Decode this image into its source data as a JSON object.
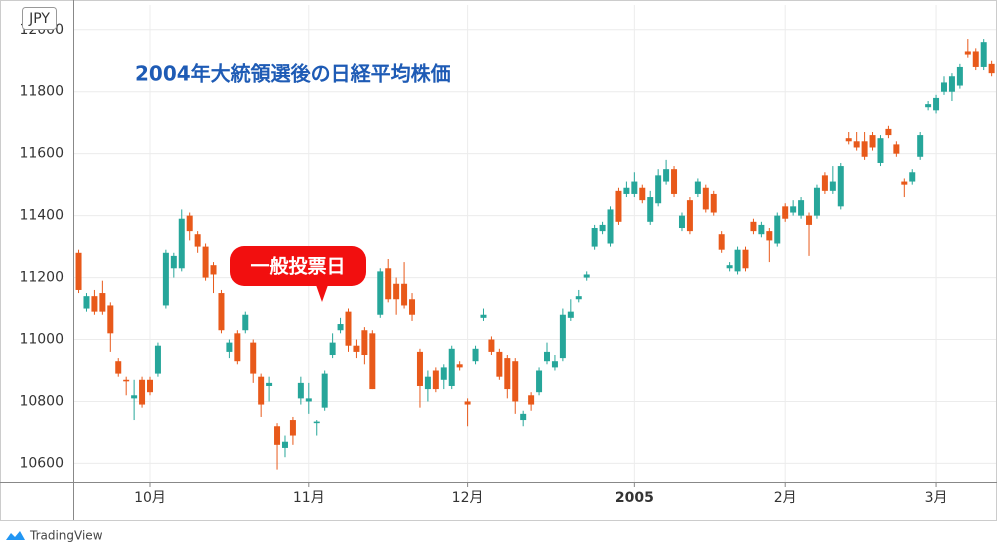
{
  "chart_data": {
    "type": "candlestick",
    "title": "2004年大統領選後の日経平均株価",
    "annotation": "一般投票日",
    "currency": "JPY",
    "source": "TradingView",
    "categories": [
      null,
      null,
      null,
      null,
      null,
      null,
      null,
      null,
      null,
      "10月",
      null,
      null,
      null,
      null,
      null,
      null,
      null,
      null,
      null,
      null,
      null,
      null,
      null,
      null,
      null,
      null,
      null,
      null,
      null,
      "11月",
      null,
      null,
      null,
      null,
      null,
      null,
      null,
      null,
      null,
      null,
      null,
      null,
      null,
      null,
      null,
      null,
      null,
      null,
      null,
      "12月",
      null,
      null,
      null,
      null,
      null,
      null,
      null,
      null,
      null,
      null,
      null,
      null,
      null,
      null,
      null,
      null,
      null,
      null,
      null,
      null,
      "2005",
      null,
      null,
      null,
      null,
      null,
      null,
      null,
      null,
      null,
      null,
      null,
      null,
      null,
      null,
      null,
      null,
      null,
      null,
      "2月",
      null,
      null,
      null,
      null,
      null,
      null,
      null,
      null,
      null,
      null,
      null,
      null,
      null,
      null,
      null,
      null,
      null,
      null,
      "3月",
      null,
      null,
      null,
      null,
      null,
      null,
      null
    ],
    "open": [
      11280,
      11100,
      11140,
      11150,
      11110,
      10930,
      10870,
      10810,
      10870,
      10870,
      10890,
      11110,
      11230,
      11230,
      11400,
      11340,
      11300,
      11240,
      11150,
      10960,
      11020,
      11030,
      10990,
      10880,
      10850,
      10720,
      10650,
      10740,
      10810,
      10800,
      10730,
      10780,
      10950,
      11030,
      11090,
      10980,
      11030,
      11020,
      11080,
      11230,
      11180,
      11180,
      11130,
      10960,
      10840,
      10900,
      10870,
      10850,
      10920,
      10800,
      10930,
      11070,
      11000,
      10960,
      10940,
      10930,
      10740,
      10820,
      10830,
      10930,
      10910,
      10940,
      11070,
      11130,
      11200,
      11300,
      11350,
      11310,
      11480,
      11470,
      11470,
      11490,
      11380,
      11440,
      11510,
      11550,
      11360,
      11450,
      11470,
      11490,
      11470,
      11340,
      11230,
      11220,
      11290,
      11380,
      11340,
      11350,
      11310,
      11430,
      11410,
      11400,
      11400,
      11400,
      11530,
      11480,
      11430,
      11650,
      11640,
      11640,
      11660,
      11570,
      11680,
      11630,
      11510,
      11510,
      11590,
      11750,
      11740,
      11800,
      11800,
      11820,
      11930,
      11930,
      11880,
      11890
    ],
    "high": [
      11290,
      11150,
      11160,
      11190,
      11120,
      10940,
      10880,
      10870,
      10880,
      10880,
      10990,
      11290,
      11280,
      11420,
      11410,
      11350,
      11310,
      11250,
      11160,
      11000,
      11030,
      11090,
      11000,
      10890,
      10880,
      10730,
      10690,
      10750,
      10880,
      10860,
      10740,
      10900,
      11020,
      11070,
      11100,
      11000,
      11040,
      11030,
      11230,
      11260,
      11200,
      11250,
      11150,
      10970,
      10900,
      10910,
      10920,
      10980,
      10930,
      10810,
      10980,
      11100,
      11010,
      10970,
      10950,
      10940,
      10770,
      10830,
      10910,
      10990,
      10950,
      11100,
      11130,
      11160,
      11220,
      11370,
      11380,
      11430,
      11490,
      11510,
      11540,
      11500,
      11480,
      11550,
      11580,
      11560,
      11410,
      11460,
      11520,
      11500,
      11480,
      11350,
      11250,
      11300,
      11300,
      11390,
      11380,
      11360,
      11410,
      11440,
      11450,
      11460,
      11410,
      11500,
      11540,
      11560,
      11570,
      11670,
      11670,
      11670,
      11670,
      11660,
      11690,
      11640,
      11520,
      11550,
      11670,
      11770,
      11790,
      11850,
      11860,
      11890,
      11970,
      11940,
      11970,
      11900
    ],
    "low": [
      11150,
      11090,
      11080,
      11080,
      10960,
      10880,
      10820,
      10740,
      10780,
      10820,
      10880,
      11100,
      11200,
      11220,
      11320,
      11280,
      11190,
      11150,
      11020,
      10940,
      10920,
      11020,
      10860,
      10750,
      10800,
      10580,
      10620,
      10660,
      10790,
      10760,
      10690,
      10770,
      10940,
      11020,
      10960,
      10940,
      10920,
      10840,
      11070,
      11120,
      11080,
      11100,
      11060,
      10780,
      10800,
      10830,
      10840,
      10840,
      10900,
      10720,
      10920,
      11060,
      10950,
      10870,
      10810,
      10760,
      10720,
      10770,
      10820,
      10920,
      10900,
      10930,
      11060,
      11120,
      11190,
      11290,
      11340,
      11300,
      11370,
      11460,
      11460,
      11440,
      11370,
      11430,
      11500,
      11460,
      11350,
      11340,
      11460,
      11410,
      11400,
      11280,
      11220,
      11210,
      11220,
      11340,
      11330,
      11250,
      11300,
      11380,
      11400,
      11390,
      11270,
      11390,
      11470,
      11470,
      11420,
      11630,
      11610,
      11580,
      11610,
      11560,
      11650,
      11590,
      11460,
      11500,
      11580,
      11740,
      11730,
      11790,
      11770,
      11810,
      11910,
      11870,
      11870,
      11850
    ],
    "close": [
      11160,
      11140,
      11090,
      11090,
      11020,
      10890,
      10865,
      10820,
      10790,
      10830,
      10980,
      11280,
      11270,
      11390,
      11350,
      11300,
      11200,
      11210,
      11030,
      10990,
      10930,
      11080,
      10890,
      10790,
      10860,
      10660,
      10670,
      10690,
      10860,
      10810,
      10735,
      10890,
      10990,
      11050,
      10980,
      10960,
      10950,
      10840,
      11220,
      11130,
      11130,
      11110,
      11080,
      10850,
      10880,
      10840,
      10910,
      10970,
      10910,
      10790,
      10970,
      11080,
      10960,
      10880,
      10840,
      10800,
      10760,
      10790,
      10900,
      10960,
      10930,
      11080,
      11090,
      11140,
      11210,
      11360,
      11370,
      11420,
      11380,
      11490,
      11510,
      11450,
      11460,
      11530,
      11550,
      11470,
      11400,
      11350,
      11510,
      11420,
      11410,
      11290,
      11240,
      11290,
      11230,
      11350,
      11370,
      11320,
      11400,
      11390,
      11430,
      11450,
      11370,
      11490,
      11480,
      11510,
      11560,
      11640,
      11620,
      11590,
      11620,
      11650,
      11660,
      11600,
      11500,
      11540,
      11660,
      11760,
      11780,
      11830,
      11850,
      11880,
      11920,
      11880,
      11960,
      11860
    ],
    "up_color": "#26a69a",
    "down_color": "#e8591a",
    "ylim": [
      10540,
      12080
    ],
    "yticks": [
      10600,
      10800,
      11000,
      11200,
      11400,
      11600,
      11800,
      12000
    ],
    "grid": true
  }
}
